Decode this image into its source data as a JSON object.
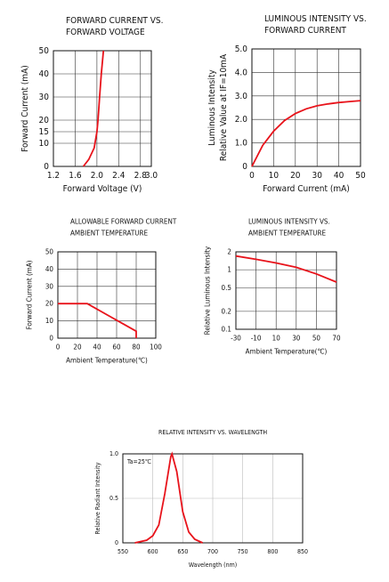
{
  "chart_data": [
    {
      "type": "line",
      "title": [
        "FORWARD CURRENT VS.",
        "FORWARD VOLTAGE"
      ],
      "xlabel": "Forward Voltage (V)",
      "ylabel": "Forward Current (mA)",
      "x": [
        1.75,
        1.85,
        1.95,
        2.0,
        2.02,
        2.05,
        2.08,
        2.12
      ],
      "y": [
        0,
        3,
        8,
        15,
        20,
        30,
        40,
        50
      ],
      "color": "#e8131b",
      "xlim": [
        1.2,
        3.0
      ],
      "xticks": [
        1.2,
        1.6,
        {
          "value": 2,
          "label": "2.0"
        },
        2.4,
        2.8,
        {
          "value": 3,
          "label": "3.0"
        }
      ],
      "ylim": [
        0,
        50
      ],
      "yticks": [
        0,
        10,
        15,
        20,
        30,
        40,
        50
      ],
      "grid": true
    },
    {
      "type": "line",
      "title": [
        "LUMINOUS INTENSITY VS.",
        "FORWARD CURRENT"
      ],
      "xlabel": "Forward Current (mA)",
      "ylabel": [
        "Luminous Intensity",
        "Relative Value at IF=10mA"
      ],
      "x": [
        0,
        5,
        10,
        15,
        20,
        25,
        30,
        35,
        40,
        45,
        50
      ],
      "y": [
        0,
        0.9,
        1.5,
        1.95,
        2.25,
        2.45,
        2.58,
        2.66,
        2.72,
        2.76,
        2.8
      ],
      "color": "#e8131b",
      "xlim": [
        0,
        50
      ],
      "xticks": [
        0,
        10,
        20,
        30,
        40,
        50
      ],
      "ylim": [
        0,
        5
      ],
      "yticks": [
        0,
        {
          "value": 1,
          "label": "1.0"
        },
        {
          "value": 2,
          "label": "2.0"
        },
        {
          "value": 3,
          "label": "3.0"
        },
        {
          "value": 4,
          "label": "4.0"
        },
        {
          "value": 5,
          "label": "5.0"
        }
      ],
      "grid": true
    },
    {
      "type": "line",
      "title": [
        "ALLOWABLE FORWARD CURRENT",
        "AMBIENT TEMPERATURE"
      ],
      "xlabel": "Ambient Temperature(℃)",
      "ylabel": "Forward Current (mA)",
      "x": [
        0,
        30,
        80,
        80
      ],
      "y": [
        20,
        20,
        4,
        0
      ],
      "color": "#e8131b",
      "xlim": [
        0,
        100
      ],
      "xticks": [
        0,
        20,
        40,
        60,
        80,
        100
      ],
      "ylim": [
        0,
        50
      ],
      "yticks": [
        0,
        10,
        20,
        30,
        40,
        50
      ],
      "grid": true
    },
    {
      "type": "line",
      "title": [
        "LUMINOUS INTENSITY VS.",
        "AMBIENT TEMPERATURE"
      ],
      "xlabel": "Ambient Temperature(℃)",
      "ylabel": "Relative Luminous Intensity",
      "x": [
        -30,
        -10,
        10,
        30,
        50,
        70
      ],
      "y": [
        1.7,
        1.5,
        1.3,
        1.1,
        0.85,
        0.62
      ],
      "color": "#e8131b",
      "xlim": [
        -30,
        70
      ],
      "xticks": [
        -30,
        -10,
        10,
        30,
        50,
        70
      ],
      "ylim": [
        0.1,
        2
      ],
      "yticks": [
        0.1,
        0.2,
        0.5,
        1,
        2
      ],
      "log_y": true,
      "grid": true
    },
    {
      "type": "line",
      "title": [
        "RELATIVE INTENSITY VS. WAVELENGTH"
      ],
      "xlabel": "Wavelength (nm)",
      "ylabel": "Relative Radiant Intensity",
      "annotation": "Ta=25℃",
      "x": [
        570,
        590,
        600,
        610,
        620,
        630,
        632,
        640,
        650,
        660,
        670,
        683
      ],
      "y": [
        0,
        0.03,
        0.08,
        0.2,
        0.55,
        0.97,
        1.0,
        0.8,
        0.35,
        0.12,
        0.04,
        0
      ],
      "color": "#e8131b",
      "xlim": [
        550,
        850
      ],
      "xticks": [
        550,
        600,
        650,
        700,
        750,
        800,
        850
      ],
      "ylim": [
        0,
        1
      ],
      "yticks": [
        0,
        0.5,
        {
          "value": 1,
          "label": "1.0"
        }
      ],
      "grid": true
    }
  ]
}
